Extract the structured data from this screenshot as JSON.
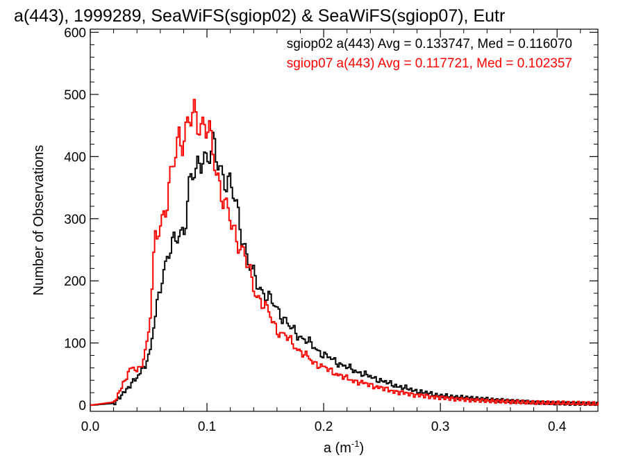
{
  "chart_data": {
    "type": "line",
    "step": true,
    "title": "a(443), 1999289, SeaWiFS(sgiop02) & SeaWiFS(sgiop07), Eutr",
    "xlabel": "a (m",
    "xlabel_sup": "-1",
    "xlabel_tail": ")",
    "ylabel": "Number of Observations",
    "xlim": [
      0.0,
      0.435
    ],
    "ylim": [
      -10,
      605
    ],
    "x_ticks": [
      "0.0",
      "0.1",
      "0.2",
      "0.3",
      "0.4"
    ],
    "x_tick_values": [
      0.0,
      0.1,
      0.2,
      0.3,
      0.4
    ],
    "y_ticks": [
      "0",
      "100",
      "200",
      "300",
      "400",
      "500",
      "600"
    ],
    "y_tick_values": [
      0,
      100,
      200,
      300,
      400,
      500,
      600
    ],
    "grid": false,
    "legend_placement": "top-right",
    "legend": [
      "sgiop02 a(443) Avg = 0.133747, Med = 0.116070",
      "sgiop07 a(443) Avg = 0.117721, Med = 0.102357"
    ],
    "series": [
      {
        "color": "#000000",
        "x": [
          0.0,
          0.02,
          0.03,
          0.04,
          0.05,
          0.06,
          0.065,
          0.07,
          0.08,
          0.085,
          0.09,
          0.095,
          0.1,
          0.105,
          0.11,
          0.115,
          0.12,
          0.125,
          0.13,
          0.135,
          0.14,
          0.15,
          0.16,
          0.17,
          0.18,
          0.19,
          0.2,
          0.22,
          0.24,
          0.26,
          0.28,
          0.3,
          0.32,
          0.35,
          0.38,
          0.41,
          0.435
        ],
        "y": [
          0,
          3,
          25,
          45,
          80,
          200,
          240,
          255,
          290,
          360,
          370,
          410,
          395,
          410,
          390,
          365,
          345,
          320,
          270,
          225,
          205,
          175,
          155,
          125,
          110,
          95,
          80,
          60,
          45,
          32,
          22,
          15,
          12,
          8,
          5,
          3,
          2
        ]
      },
      {
        "color": "#ff0000",
        "x": [
          0.0,
          0.02,
          0.03,
          0.035,
          0.04,
          0.045,
          0.05,
          0.055,
          0.06,
          0.065,
          0.07,
          0.075,
          0.08,
          0.085,
          0.09,
          0.095,
          0.1,
          0.105,
          0.11,
          0.115,
          0.12,
          0.13,
          0.14,
          0.15,
          0.16,
          0.17,
          0.18,
          0.19,
          0.2,
          0.22,
          0.24,
          0.26,
          0.28,
          0.3,
          0.32,
          0.35,
          0.38,
          0.41,
          0.435
        ],
        "y": [
          0,
          5,
          45,
          60,
          55,
          75,
          120,
          270,
          300,
          320,
          380,
          440,
          430,
          455,
          470,
          455,
          440,
          400,
          360,
          320,
          290,
          250,
          185,
          155,
          120,
          105,
          85,
          70,
          60,
          42,
          32,
          22,
          16,
          12,
          9,
          6,
          4,
          3,
          2
        ]
      }
    ]
  }
}
